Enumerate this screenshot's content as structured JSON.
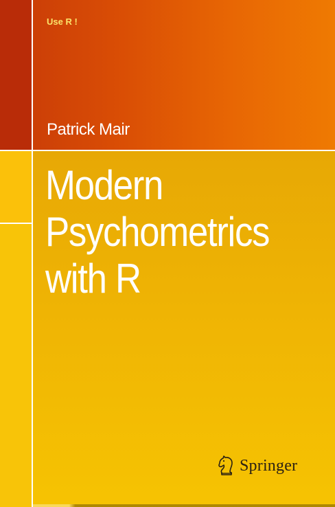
{
  "cover": {
    "series": "Use R !",
    "author": "Patrick Mair",
    "title_lines": [
      "Modern",
      "Psychometrics",
      "with R"
    ],
    "publisher": {
      "name": "Springer",
      "icon": "chess-knight-icon"
    }
  },
  "colors": {
    "top_band_left": "#c73a08",
    "top_band_right": "#ef7a02",
    "bottom_band": "#efb404",
    "series_text": "#fbe46a",
    "title_text": "#ffffff",
    "publisher_text": "#2b2113"
  }
}
